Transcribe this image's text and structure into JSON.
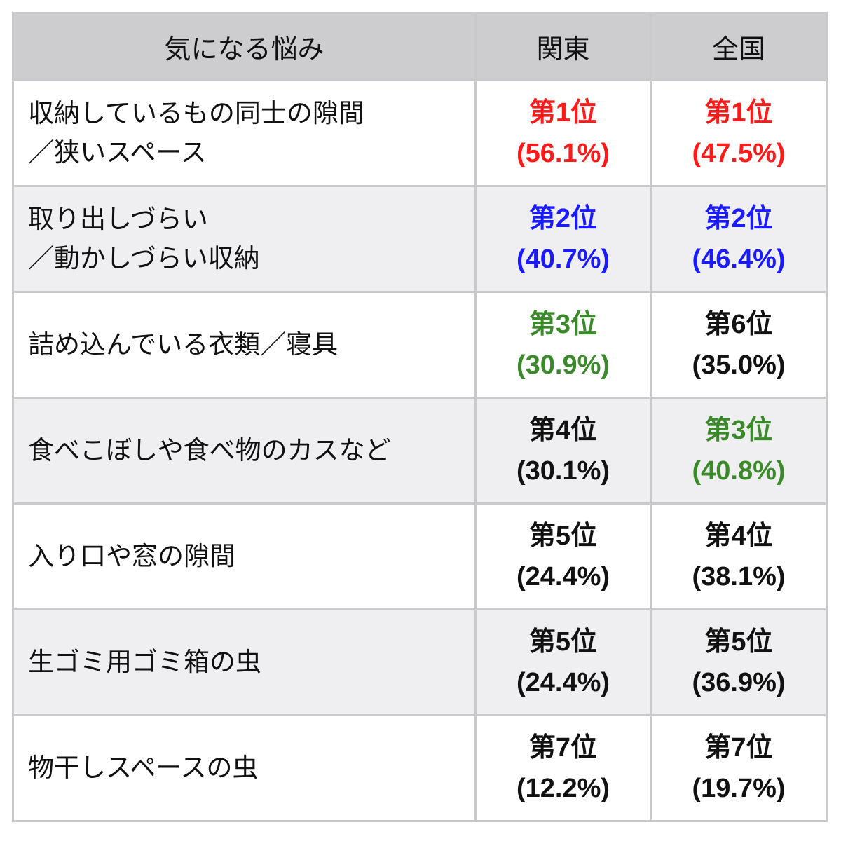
{
  "table": {
    "headers": {
      "item": "気になる悩み",
      "kanto": "関東",
      "national": "全国"
    },
    "colors": {
      "rank1": "#ff1a1a",
      "rank2": "#1a1aff",
      "rank3": "#3a8a2a",
      "default": "#111111"
    },
    "rows": [
      {
        "item_lines": [
          "収納しているもの同士の隙間",
          "／狭いスペース"
        ],
        "kanto": {
          "rank": "第1位",
          "pct": "(56.1%)",
          "color": "#ff1a1a"
        },
        "national": {
          "rank": "第1位",
          "pct": "(47.5%)",
          "color": "#ff1a1a"
        }
      },
      {
        "item_lines": [
          "取り出しづらい",
          "／動かしづらい収納"
        ],
        "kanto": {
          "rank": "第2位",
          "pct": "(40.7%)",
          "color": "#1a1aff"
        },
        "national": {
          "rank": "第2位",
          "pct": "(46.4%)",
          "color": "#1a1aff"
        }
      },
      {
        "item_lines": [
          "詰め込んでいる衣類／寝具"
        ],
        "kanto": {
          "rank": "第3位",
          "pct": "(30.9%)",
          "color": "#3a8a2a"
        },
        "national": {
          "rank": "第6位",
          "pct": "(35.0%)",
          "color": "#111111"
        }
      },
      {
        "item_lines": [
          "食べこぼしや食べ物のカスなど"
        ],
        "kanto": {
          "rank": "第4位",
          "pct": "(30.1%)",
          "color": "#111111"
        },
        "national": {
          "rank": "第3位",
          "pct": "(40.8%)",
          "color": "#3a8a2a"
        }
      },
      {
        "item_lines": [
          "入り口や窓の隙間"
        ],
        "kanto": {
          "rank": "第5位",
          "pct": "(24.4%)",
          "color": "#111111"
        },
        "national": {
          "rank": "第4位",
          "pct": "(38.1%)",
          "color": "#111111"
        }
      },
      {
        "item_lines": [
          "生ゴミ用ゴミ箱の虫"
        ],
        "kanto": {
          "rank": "第5位",
          "pct": "(24.4%)",
          "color": "#111111"
        },
        "national": {
          "rank": "第5位",
          "pct": "(36.9%)",
          "color": "#111111"
        }
      },
      {
        "item_lines": [
          "物干しスペースの虫"
        ],
        "kanto": {
          "rank": "第7位",
          "pct": "(12.2%)",
          "color": "#111111"
        },
        "national": {
          "rank": "第7位",
          "pct": "(19.7%)",
          "color": "#111111"
        }
      }
    ]
  }
}
